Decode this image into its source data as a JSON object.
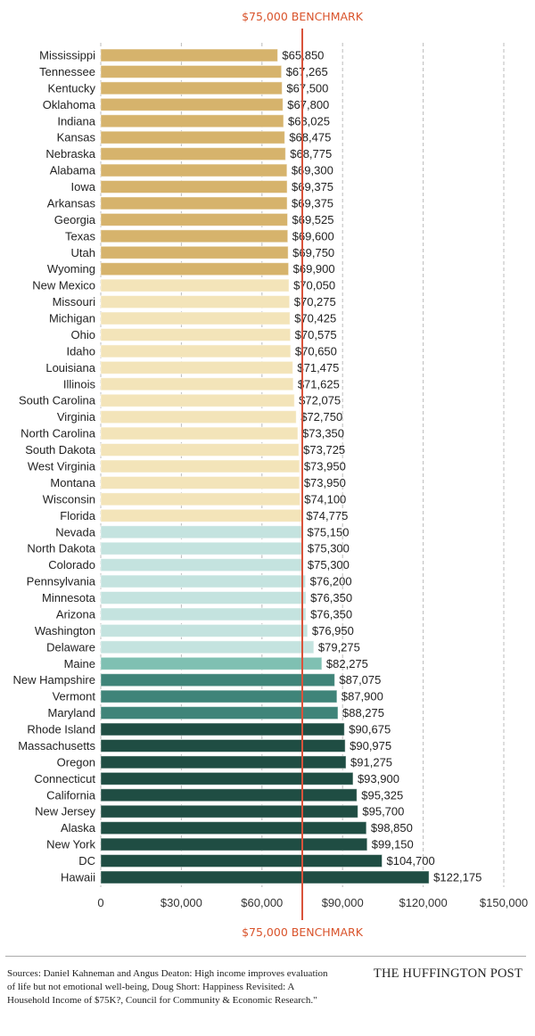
{
  "chart_data": {
    "type": "bar",
    "orientation": "horizontal",
    "title": "",
    "xlabel": "",
    "ylabel": "",
    "xlim": [
      0,
      150000
    ],
    "x_ticks": [
      0,
      30000,
      60000,
      90000,
      120000,
      150000
    ],
    "x_tick_labels": [
      "0",
      "$30,000",
      "$60,000",
      "$90,000",
      "$120,000",
      "$150,000"
    ],
    "grid": "vertical dashed",
    "benchmark": {
      "value": 75000,
      "label": "$75,000 BENCHMARK",
      "color": "#d9533b"
    },
    "color_tiers": [
      {
        "below": 70000,
        "color": "#d6b36c"
      },
      {
        "below": 75000,
        "color": "#f3e4b9"
      },
      {
        "below": 80000,
        "color": "#c4e3df"
      },
      {
        "below": 85000,
        "color": "#7fc0b2"
      },
      {
        "below": 90000,
        "color": "#3f8479"
      },
      {
        "below": 1000000,
        "color": "#1f4d43"
      }
    ],
    "categories": [
      "Mississippi",
      "Tennessee",
      "Kentucky",
      "Oklahoma",
      "Indiana",
      "Kansas",
      "Nebraska",
      "Alabama",
      "Iowa",
      "Arkansas",
      "Georgia",
      "Texas",
      "Utah",
      "Wyoming",
      "New Mexico",
      "Missouri",
      "Michigan",
      "Ohio",
      "Idaho",
      "Louisiana",
      "Illinois",
      "South Carolina",
      "Virginia",
      "North Carolina",
      "South Dakota",
      "West Virginia",
      "Montana",
      "Wisconsin",
      "Florida",
      "Nevada",
      "North Dakota",
      "Colorado",
      "Pennsylvania",
      "Minnesota",
      "Arizona",
      "Washington",
      "Delaware",
      "Maine",
      "New Hampshire",
      "Vermont",
      "Maryland",
      "Rhode Island",
      "Massachusetts",
      "Oregon",
      "Connecticut",
      "California",
      "New Jersey",
      "Alaska",
      "New York",
      "DC",
      "Hawaii"
    ],
    "values": [
      65850,
      67265,
      67500,
      67800,
      68025,
      68475,
      68775,
      69300,
      69375,
      69375,
      69525,
      69600,
      69750,
      69900,
      70050,
      70275,
      70425,
      70575,
      70650,
      71475,
      71625,
      72075,
      72750,
      73350,
      73725,
      73950,
      73950,
      74100,
      74775,
      75150,
      75300,
      75300,
      76200,
      76350,
      76350,
      76950,
      79275,
      82275,
      87075,
      87900,
      88275,
      90675,
      90975,
      91275,
      93900,
      95325,
      95700,
      98850,
      99150,
      104700,
      122175
    ],
    "value_labels": [
      "$65,850",
      "$67,265",
      "$67,500",
      "$67,800",
      "$68,025",
      "$68,475",
      "$68,775",
      "$69,300",
      "$69,375",
      "$69,375",
      "$69,525",
      "$69,600",
      "$69,750",
      "$69,900",
      "$70,050",
      "$70,275",
      "$70,425",
      "$70,575",
      "$70,650",
      "$71,475",
      "$71,625",
      "$72,075",
      "$72,750",
      "$73,350",
      "$73,725",
      "$73,950",
      "$73,950",
      "$74,100",
      "$74,775",
      "$75,150",
      "$75,300",
      "$75,300",
      "$76,200",
      "$76,350",
      "$76,350",
      "$76,950",
      "$79,275",
      "$82,275",
      "$87,075",
      "$87,900",
      "$88,275",
      "$90,675",
      "$90,975",
      "$91,275",
      "$93,900",
      "$95,325",
      "$95,700",
      "$98,850",
      "$99,150",
      "$104,700",
      "$122,175"
    ]
  },
  "footer": {
    "sources": "Sources: Daniel Kahneman and Angus Deaton: High income improves evaluation of life but not emotional well-being, Doug Short: Happiness Revisited: A Household Income of $75K?, Council for Community & Economic Research.\"",
    "brand": "THE HUFFINGTON POST"
  }
}
